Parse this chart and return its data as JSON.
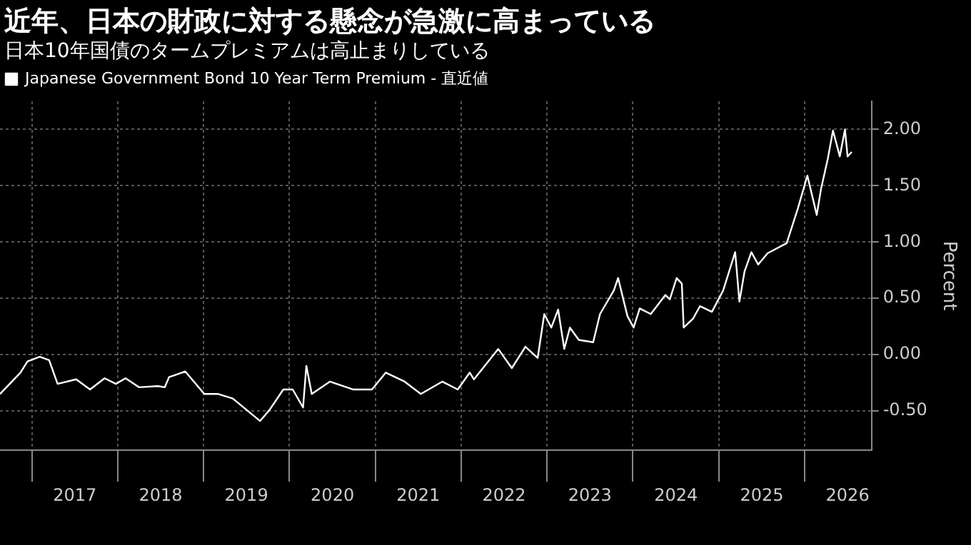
{
  "chart_data": {
    "type": "line",
    "title": "近年、日本の財政に対する懸念が急激に高まっている",
    "subtitle": "日本10年国債のタームプレミアムは高止まりしている",
    "ylabel": "Percent",
    "x": [
      "2016-08-18",
      "2016-11-13",
      "2016-12-13",
      "2017-02-03",
      "2017-03-15",
      "2017-04-20",
      "2017-07-08",
      "2017-09-05",
      "2017-11-06",
      "2017-12-24",
      "2018-02-03",
      "2018-04-01",
      "2018-06-21",
      "2018-07-20",
      "2018-08-07",
      "2018-10-15",
      "2019-01-04",
      "2019-03-04",
      "2019-05-05",
      "2019-07-02",
      "2019-08-29",
      "2019-10-09",
      "2019-12-06",
      "2020-01-15",
      "2020-02-28",
      "2020-03-13",
      "2020-04-05",
      "2020-06-21",
      "2020-09-27",
      "2020-12-17",
      "2021-02-14",
      "2021-05-05",
      "2021-07-13",
      "2021-10-12",
      "2021-12-17",
      "2022-02-06",
      "2022-02-24",
      "2022-06-07",
      "2022-08-04",
      "2022-10-01",
      "2022-11-22",
      "2022-12-20",
      "2023-01-19",
      "2023-02-17",
      "2023-03-15",
      "2023-04-08",
      "2023-05-16",
      "2023-07-16",
      "2023-08-14",
      "2023-10-12",
      "2023-10-30",
      "2023-12-09",
      "2024-01-04",
      "2024-01-30",
      "2024-03-17",
      "2024-05-18",
      "2024-06-06",
      "2024-07-05",
      "2024-07-27",
      "2024-08-04",
      "2024-09-13",
      "2024-10-12",
      "2024-12-02",
      "2025-01-19",
      "2025-03-11",
      "2025-03-29",
      "2025-04-20",
      "2025-05-19",
      "2025-06-17",
      "2025-07-27",
      "2025-10-16",
      "2025-12-03",
      "2026-01-12",
      "2026-02-21",
      "2026-03-11",
      "2026-04-09",
      "2026-05-01",
      "2026-05-30",
      "2026-06-21",
      "2026-07-02",
      "2026-07-20"
    ],
    "series": [
      {
        "name": "Japanese Government Bond 10 Year Term Premium - 直近値",
        "color": "#ffffff",
        "values": [
          -0.35,
          -0.16,
          -0.06,
          -0.02,
          -0.05,
          -0.26,
          -0.22,
          -0.31,
          -0.21,
          -0.26,
          -0.21,
          -0.29,
          -0.28,
          -0.29,
          -0.2,
          -0.15,
          -0.35,
          -0.35,
          -0.39,
          -0.49,
          -0.59,
          -0.49,
          -0.31,
          -0.31,
          -0.47,
          -0.1,
          -0.35,
          -0.24,
          -0.31,
          -0.31,
          -0.16,
          -0.24,
          -0.35,
          -0.24,
          -0.31,
          -0.16,
          -0.22,
          0.05,
          -0.12,
          0.07,
          -0.03,
          0.36,
          0.24,
          0.4,
          0.05,
          0.24,
          0.13,
          0.11,
          0.36,
          0.57,
          0.68,
          0.34,
          0.24,
          0.41,
          0.36,
          0.53,
          0.49,
          0.68,
          0.63,
          0.24,
          0.32,
          0.43,
          0.38,
          0.57,
          0.91,
          0.47,
          0.74,
          0.91,
          0.8,
          0.9,
          0.99,
          1.3,
          1.59,
          1.24,
          1.47,
          1.74,
          1.99,
          1.76,
          2.0,
          1.76,
          1.8
        ]
      }
    ],
    "xlim": [
      "2016-08-18",
      "2026-10-12"
    ],
    "xticks": [
      {
        "value": "2017-07-02",
        "label": "2017"
      },
      {
        "value": "2018-07-02",
        "label": "2018"
      },
      {
        "value": "2019-07-02",
        "label": "2019"
      },
      {
        "value": "2020-07-02",
        "label": "2020"
      },
      {
        "value": "2021-07-02",
        "label": "2021"
      },
      {
        "value": "2022-07-02",
        "label": "2022"
      },
      {
        "value": "2023-07-02",
        "label": "2023"
      },
      {
        "value": "2024-07-02",
        "label": "2024"
      },
      {
        "value": "2025-07-02",
        "label": "2025"
      },
      {
        "value": "2026-07-02",
        "label": "2026"
      }
    ],
    "ylim": [
      -0.85,
      2.25
    ],
    "yticks": [
      {
        "value": -0.5,
        "label": "-0.50"
      },
      {
        "value": 0,
        "label": "0.00"
      },
      {
        "value": 0.5,
        "label": "0.50"
      },
      {
        "value": 1,
        "label": "1.00"
      },
      {
        "value": 1.5,
        "label": "1.50"
      },
      {
        "value": 2,
        "label": "2.00"
      }
    ],
    "grid": true,
    "legend": "top left",
    "line_style": "solid",
    "marker": "none"
  }
}
